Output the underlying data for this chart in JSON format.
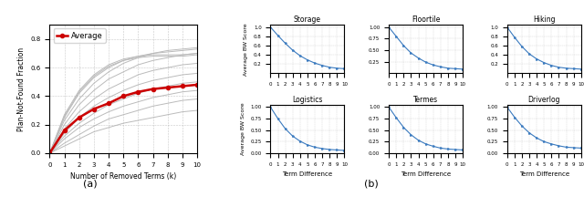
{
  "left_plot": {
    "xlabel": "Number of Removed Terms (k)",
    "ylabel": "Plan-Not-Found Fraction",
    "x_ticks": [
      0,
      1,
      2,
      3,
      4,
      5,
      6,
      7,
      8,
      9,
      10
    ],
    "ylim": [
      0.0,
      0.9
    ],
    "yticks": [
      0.0,
      0.2,
      0.4,
      0.6,
      0.8
    ],
    "avg_color": "#cc0000",
    "gray_color": "#bbbbbb",
    "avg_values": [
      0.0,
      0.16,
      0.25,
      0.31,
      0.35,
      0.4,
      0.43,
      0.45,
      0.46,
      0.47,
      0.48
    ],
    "gray_lines": [
      [
        0.0,
        0.05,
        0.1,
        0.15,
        0.18,
        0.21,
        0.23,
        0.25,
        0.27,
        0.29,
        0.3
      ],
      [
        0.0,
        0.07,
        0.13,
        0.19,
        0.24,
        0.27,
        0.3,
        0.33,
        0.35,
        0.37,
        0.38
      ],
      [
        0.0,
        0.1,
        0.18,
        0.24,
        0.29,
        0.33,
        0.36,
        0.39,
        0.41,
        0.43,
        0.44
      ],
      [
        0.0,
        0.12,
        0.21,
        0.28,
        0.34,
        0.38,
        0.42,
        0.45,
        0.47,
        0.49,
        0.5
      ],
      [
        0.0,
        0.14,
        0.25,
        0.33,
        0.39,
        0.44,
        0.48,
        0.51,
        0.53,
        0.55,
        0.56
      ],
      [
        0.0,
        0.17,
        0.29,
        0.38,
        0.45,
        0.5,
        0.55,
        0.58,
        0.6,
        0.62,
        0.63
      ],
      [
        0.0,
        0.2,
        0.34,
        0.44,
        0.52,
        0.57,
        0.62,
        0.65,
        0.67,
        0.69,
        0.7
      ],
      [
        0.0,
        0.23,
        0.38,
        0.49,
        0.57,
        0.63,
        0.67,
        0.7,
        0.72,
        0.73,
        0.74
      ],
      [
        0.0,
        0.25,
        0.42,
        0.53,
        0.6,
        0.65,
        0.68,
        0.7,
        0.71,
        0.72,
        0.73
      ],
      [
        0.0,
        0.26,
        0.43,
        0.54,
        0.61,
        0.65,
        0.67,
        0.68,
        0.68,
        0.68,
        0.69
      ],
      [
        0.0,
        0.27,
        0.44,
        0.55,
        0.62,
        0.66,
        0.68,
        0.69,
        0.69,
        0.69,
        0.7
      ]
    ],
    "legend_label": "Average",
    "subplot_label": "(a)"
  },
  "right_plots": {
    "titles": [
      "Storage",
      "Floortile",
      "Hiking",
      "Logistics",
      "Termes",
      "Driverlog"
    ],
    "xlabel": "Term Difference",
    "ylabel": "Average BW Score",
    "x_ticks": [
      0,
      1,
      2,
      3,
      4,
      5,
      6,
      7,
      8,
      9,
      10
    ],
    "line_color": "#3a7abf",
    "subplot_label": "(b)",
    "curves": [
      [
        1.0,
        0.82,
        0.65,
        0.5,
        0.38,
        0.29,
        0.22,
        0.17,
        0.13,
        0.11,
        0.1
      ],
      [
        1.0,
        0.8,
        0.6,
        0.44,
        0.33,
        0.24,
        0.18,
        0.14,
        0.11,
        0.1,
        0.09
      ],
      [
        1.0,
        0.78,
        0.58,
        0.42,
        0.31,
        0.23,
        0.17,
        0.13,
        0.11,
        0.1,
        0.09
      ],
      [
        1.0,
        0.75,
        0.53,
        0.37,
        0.26,
        0.18,
        0.13,
        0.1,
        0.08,
        0.07,
        0.06
      ],
      [
        1.0,
        0.77,
        0.56,
        0.4,
        0.28,
        0.2,
        0.15,
        0.11,
        0.09,
        0.08,
        0.07
      ],
      [
        1.0,
        0.78,
        0.59,
        0.44,
        0.33,
        0.25,
        0.2,
        0.16,
        0.13,
        0.12,
        0.11
      ]
    ],
    "yticks_storage": [
      0.2,
      0.4,
      0.6,
      0.8,
      1.0
    ],
    "yticks_floortile": [
      0.25,
      0.5,
      0.75,
      1.0
    ],
    "yticks_hiking": [
      0.2,
      0.4,
      0.6,
      0.8,
      1.0
    ],
    "yticks_logistics": [
      0.0,
      0.25,
      0.5,
      0.75,
      1.0
    ],
    "yticks_termes": [
      0.0,
      0.25,
      0.5,
      0.75,
      1.0
    ],
    "yticks_driverlog": [
      0.0,
      0.25,
      0.5,
      0.75,
      1.0
    ]
  }
}
